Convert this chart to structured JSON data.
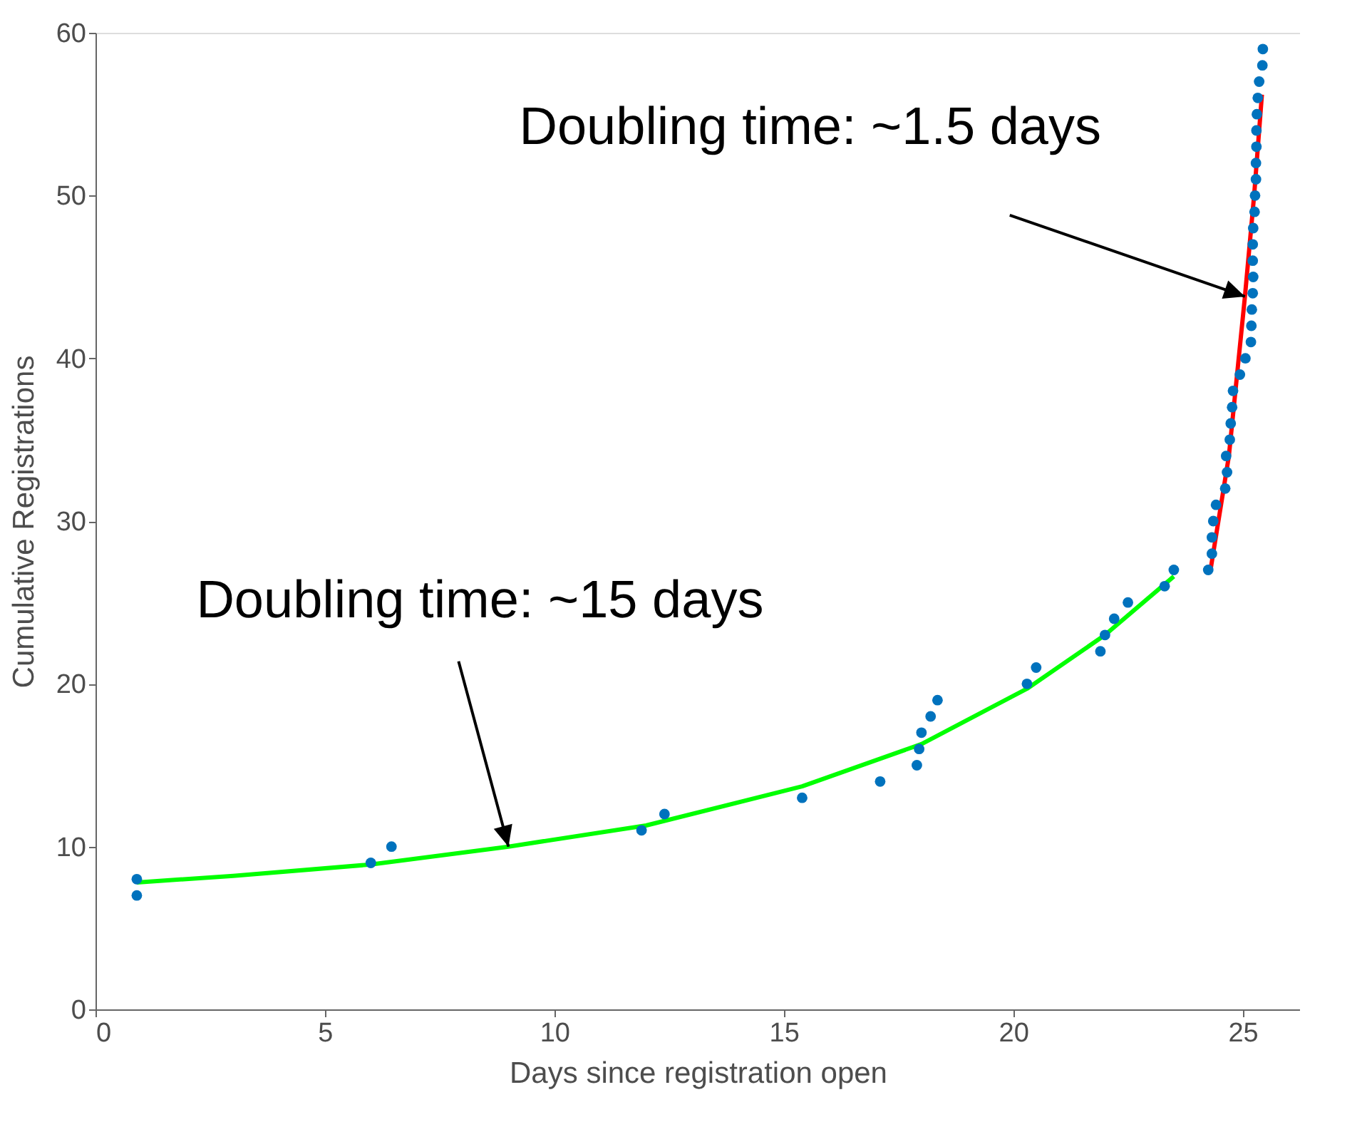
{
  "chart_data": {
    "type": "scatter",
    "xlabel": "Days since registration open",
    "ylabel": "Cumulative Registrations",
    "xlim": [
      0,
      26.25
    ],
    "ylim": [
      0,
      60
    ],
    "xticks": [
      0,
      5,
      10,
      15,
      20,
      25
    ],
    "yticks": [
      0,
      10,
      20,
      30,
      40,
      50,
      60
    ],
    "grid": false,
    "series": [
      {
        "color": "#0072bd",
        "marker": "circle",
        "x": [
          0.9,
          0.9,
          6.0,
          6.45,
          11.9,
          12.4,
          15.4,
          17.1,
          17.9,
          17.95,
          18.0,
          18.2,
          18.35,
          20.3,
          20.5,
          21.9,
          22.0,
          22.2,
          22.5,
          23.3,
          23.5,
          24.25,
          24.33,
          24.33,
          24.36,
          24.42,
          24.62,
          24.66,
          24.64,
          24.72,
          24.74,
          24.77,
          24.79,
          24.94,
          25.06,
          25.18,
          25.19,
          25.2,
          25.22,
          25.23,
          25.22,
          25.22,
          25.23,
          25.26,
          25.27,
          25.29,
          25.29,
          25.3,
          25.3,
          25.31,
          25.33,
          25.36,
          25.43,
          25.44
        ],
        "values": [
          7,
          8,
          9,
          10,
          11,
          12,
          13,
          14,
          15,
          16,
          17,
          18,
          19,
          20,
          21,
          22,
          23,
          24,
          25,
          26,
          27,
          27,
          28,
          29,
          30,
          31,
          32,
          33,
          34,
          35,
          36,
          37,
          38,
          39,
          40,
          41,
          42,
          43,
          44,
          45,
          46,
          47,
          48,
          49,
          50,
          51,
          52,
          53,
          54,
          55,
          56,
          57,
          58,
          59
        ]
      },
      {
        "type": "line",
        "color": "#00ff00",
        "line_style": "solid",
        "x": [
          0.9,
          3,
          6,
          9,
          12,
          15.4,
          18,
          20.3,
          22,
          23.5
        ],
        "values": [
          7.8,
          8.2,
          8.9,
          10.0,
          11.3,
          13.7,
          16.3,
          19.7,
          23.0,
          26.6
        ]
      },
      {
        "type": "line",
        "color": "#ff0000",
        "line_style": "solid",
        "x": [
          24.3,
          24.7,
          25.05,
          25.25,
          25.42
        ],
        "values": [
          27,
          34,
          43.8,
          50,
          56.2
        ]
      }
    ],
    "annotations": [
      {
        "text": "Doubling time: ~1.5 days",
        "x": 25.05,
        "y": 43.8
      },
      {
        "text": "Doubling time: ~15 days",
        "x": 9,
        "y": 10
      }
    ]
  }
}
